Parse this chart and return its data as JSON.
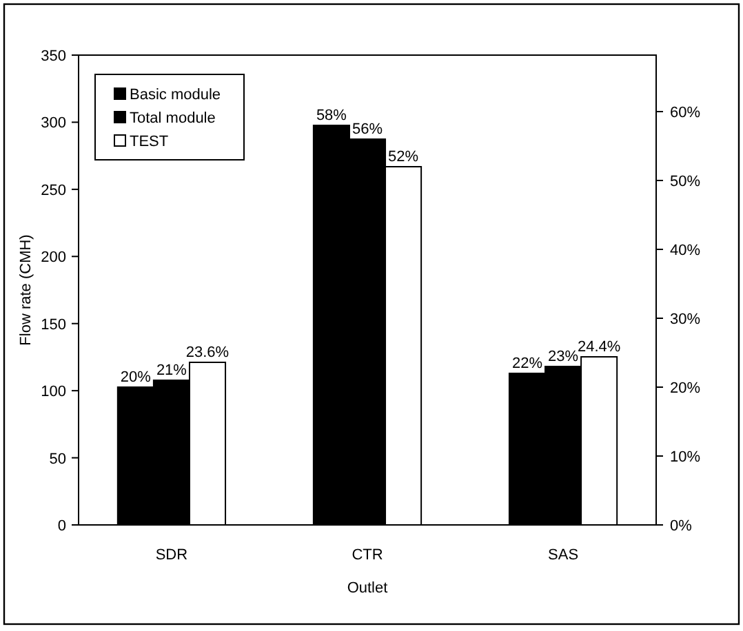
{
  "chart_data": {
    "type": "bar",
    "xlabel": "Outlet",
    "ylabel": "Flow rate (CMH)",
    "categories": [
      "SDR",
      "CTR",
      "SAS"
    ],
    "series": [
      {
        "name": "Basic module",
        "color": "#000000",
        "axis": "y2",
        "values": [
          20,
          58,
          22
        ],
        "value_labels": [
          "20%",
          "58%",
          "22%"
        ]
      },
      {
        "name": "Total module",
        "color": "#000000",
        "axis": "y2",
        "values": [
          21,
          56,
          23
        ],
        "value_labels": [
          "21%",
          "56%",
          "23%"
        ]
      },
      {
        "name": "TEST",
        "color": "#ffffff",
        "axis": "y2",
        "values": [
          23.6,
          52,
          24.4
        ],
        "value_labels": [
          "23.6%",
          "52%",
          "24.4%"
        ]
      }
    ],
    "ylim": [
      0,
      350
    ],
    "yticks": [
      0,
      50,
      100,
      150,
      200,
      250,
      300,
      350
    ],
    "y2lim": [
      0,
      68.2
    ],
    "y2ticks": [
      {
        "value": 0,
        "label": "0%"
      },
      {
        "value": 10,
        "label": "10%"
      },
      {
        "value": 20,
        "label": "20%"
      },
      {
        "value": 30,
        "label": "30%"
      },
      {
        "value": 40,
        "label": "40%"
      },
      {
        "value": 50,
        "label": "50%"
      },
      {
        "value": 60,
        "label": "60%"
      }
    ],
    "legend": "top left"
  }
}
